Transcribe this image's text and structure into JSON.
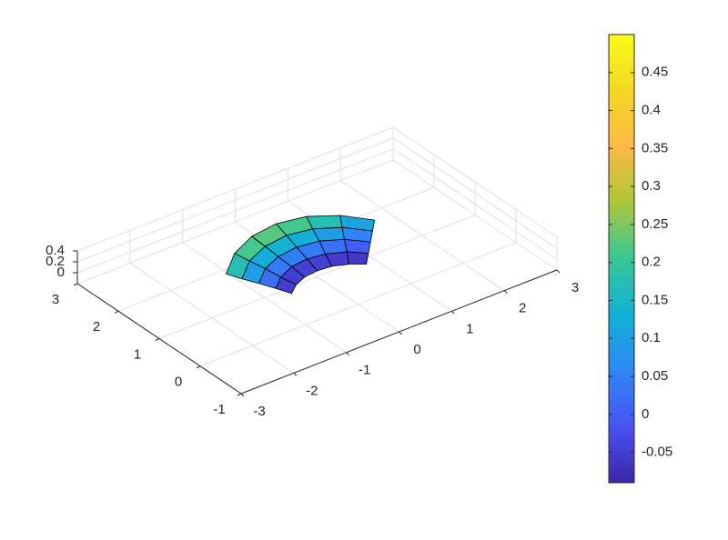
{
  "chart_data": {
    "type": "surface",
    "x": [
      [
        -0.71,
        -0.5,
        -0.26,
        0,
        0.26,
        0.5,
        0.71
      ],
      [
        -0.88,
        -0.63,
        -0.32,
        0,
        0.32,
        0.63,
        0.88
      ],
      [
        -1.06,
        -0.75,
        -0.39,
        0,
        0.39,
        0.75,
        1.06
      ],
      [
        -1.24,
        -0.88,
        -0.45,
        0,
        0.45,
        0.88,
        1.24
      ],
      [
        -1.41,
        -1,
        -0.52,
        0,
        0.52,
        1,
        1.41
      ]
    ],
    "y": [
      [
        0.71,
        0.87,
        0.97,
        1,
        0.97,
        0.87,
        0.71
      ],
      [
        0.88,
        1.08,
        1.21,
        1.25,
        1.21,
        1.08,
        0.88
      ],
      [
        1.06,
        1.3,
        1.45,
        1.5,
        1.45,
        1.3,
        1.06
      ],
      [
        1.24,
        1.52,
        1.69,
        1.75,
        1.69,
        1.52,
        1.24
      ],
      [
        1.41,
        1.73,
        1.93,
        2,
        1.93,
        1.73,
        1.41
      ]
    ],
    "z": [
      [
        -0.09,
        -0.09,
        -0.09,
        -0.09,
        -0.09,
        -0.09,
        -0.09
      ],
      [
        -0.02,
        -0.01,
        0,
        0,
        -0.01,
        -0.02,
        -0.04
      ],
      [
        0.05,
        0.08,
        0.09,
        0.09,
        0.08,
        0.05,
        0.01
      ],
      [
        0.11,
        0.16,
        0.18,
        0.18,
        0.16,
        0.11,
        0.05
      ],
      [
        0.18,
        0.24,
        0.27,
        0.27,
        0.24,
        0.18,
        0.1
      ]
    ],
    "xlim": [
      -3,
      3
    ],
    "ylim": [
      -1,
      3
    ],
    "zlim": [
      -0.2,
      0.4
    ],
    "xticks": [
      -3,
      -2,
      -1,
      0,
      1,
      2,
      3
    ],
    "yticks": [
      -1,
      0,
      1,
      2,
      3
    ],
    "zticks": [
      0,
      0.2,
      0.4
    ],
    "grid": true,
    "colormap": "parula",
    "edge_color": "#000000",
    "colorbar": {
      "clim": [
        -0.09,
        0.5
      ],
      "ticks": [
        -0.05,
        0,
        0.05,
        0.1,
        0.15,
        0.2,
        0.25,
        0.3,
        0.35,
        0.4,
        0.45
      ]
    }
  }
}
